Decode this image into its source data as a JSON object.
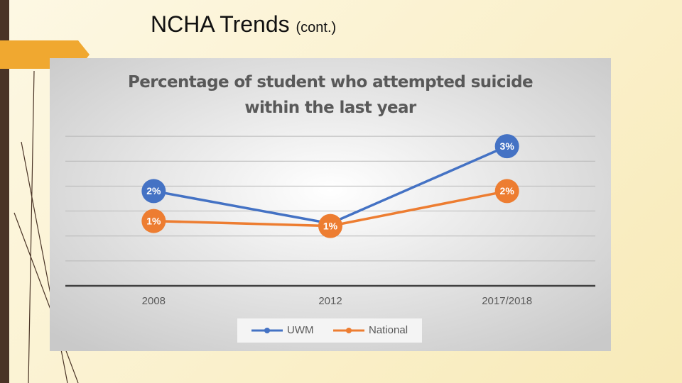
{
  "slide_title": "NCHA Trends",
  "slide_title_suffix": "(cont.)",
  "chart_data": {
    "type": "line",
    "title": "Percentage of student who attempted suicide within the last year",
    "categories": [
      "2008",
      "2012",
      "2017/2018"
    ],
    "series": [
      {
        "name": "UWM",
        "color": "#4472c4",
        "values": [
          1.9,
          1.25,
          2.8
        ],
        "value_labels": [
          "2%",
          null,
          "3%"
        ]
      },
      {
        "name": "National",
        "color": "#ed7d31",
        "values": [
          1.3,
          1.2,
          1.9
        ],
        "value_labels": [
          "1%",
          "1%",
          "2%"
        ]
      }
    ],
    "ylim": [
      0,
      3.2
    ],
    "yticks": [
      0,
      0.5,
      1,
      1.5,
      2,
      2.5,
      3
    ],
    "grid": true,
    "legend": "bottom"
  }
}
